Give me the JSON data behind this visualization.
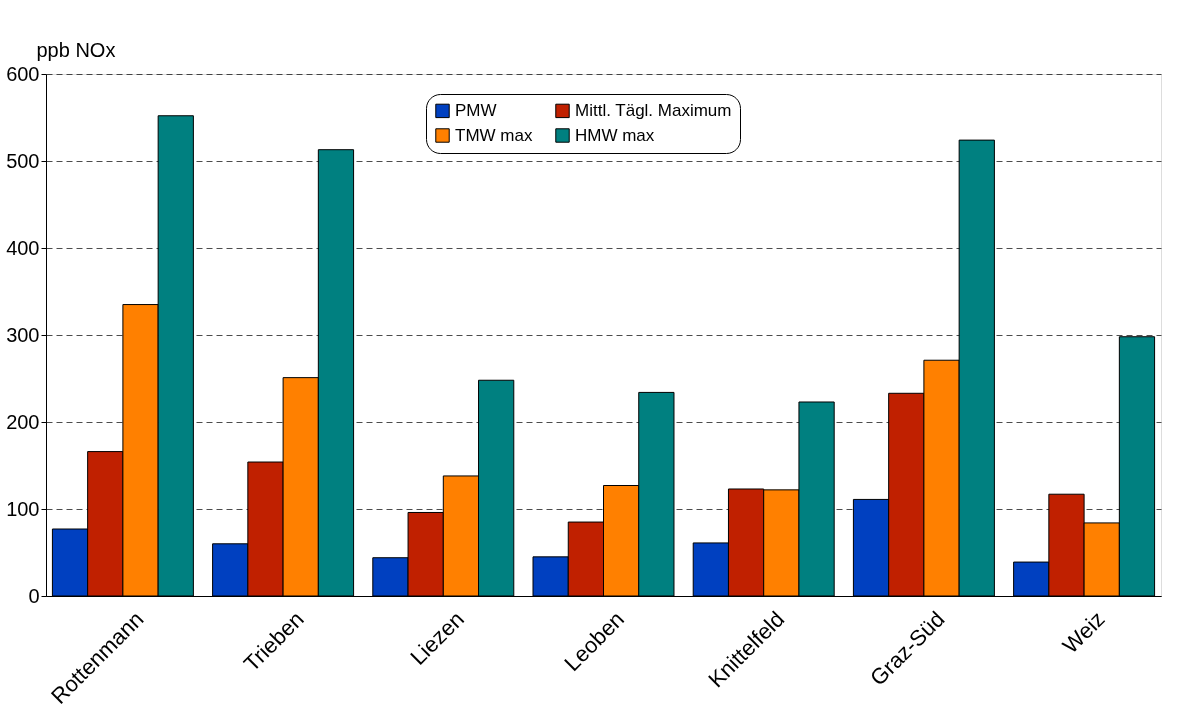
{
  "chart_data": {
    "type": "bar",
    "ylabel": "ppb NOx",
    "categories": [
      "Rottenmann",
      "Trieben",
      "Liezen",
      "Leoben",
      "Knittelfeld",
      "Graz-Süd",
      "Weiz"
    ],
    "series": [
      {
        "name": "PMW",
        "color": "#0040c0",
        "values": [
          77,
          60,
          44,
          45,
          61,
          111,
          39
        ]
      },
      {
        "name": "Mittl. Tägl. Maximum",
        "color": "#c02000",
        "values": [
          166,
          154,
          96,
          85,
          123,
          233,
          117
        ]
      },
      {
        "name": "TMW max",
        "color": "#ff8000",
        "values": [
          335,
          251,
          138,
          127,
          122,
          271,
          84
        ]
      },
      {
        "name": "HMW max",
        "color": "#008080",
        "values": [
          552,
          513,
          248,
          234,
          223,
          524,
          298
        ]
      }
    ],
    "ylim": [
      0,
      600
    ],
    "yticks": [
      0,
      100,
      200,
      300,
      400,
      500,
      600
    ],
    "grid": "y",
    "legend": "top"
  }
}
